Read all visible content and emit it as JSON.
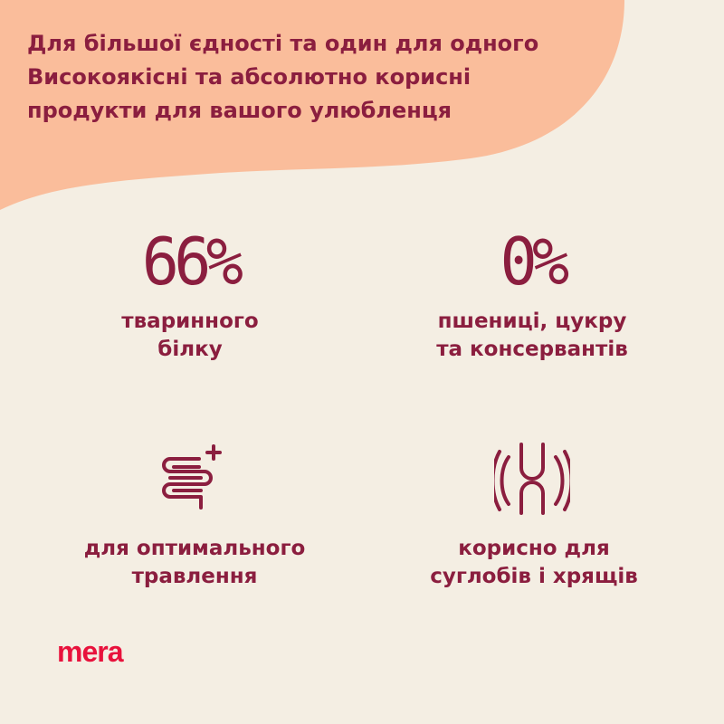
{
  "colors": {
    "background": "#f4eee3",
    "accent_shape": "#fabd9b",
    "text": "#8b1e3f",
    "logo": "#e8123c"
  },
  "headline": {
    "line1": "Для більшої єдності та один для одного",
    "line2": "Високоякісні та абсолютно корисні",
    "line3": "продукти для вашого улюбленця"
  },
  "stats": [
    {
      "value": "66%",
      "caption_line1": "тваринного",
      "caption_line2": "білку"
    },
    {
      "value": "0%",
      "caption_line1": "пшениці, цукру",
      "caption_line2": "та консервантів"
    }
  ],
  "benefits": [
    {
      "icon": "intestine-plus-icon",
      "caption_line1": "для оптимального",
      "caption_line2": "травлення"
    },
    {
      "icon": "joint-icon",
      "caption_line1": "корисно для",
      "caption_line2": "суглобів і хрящів"
    }
  ],
  "logo": "mera"
}
